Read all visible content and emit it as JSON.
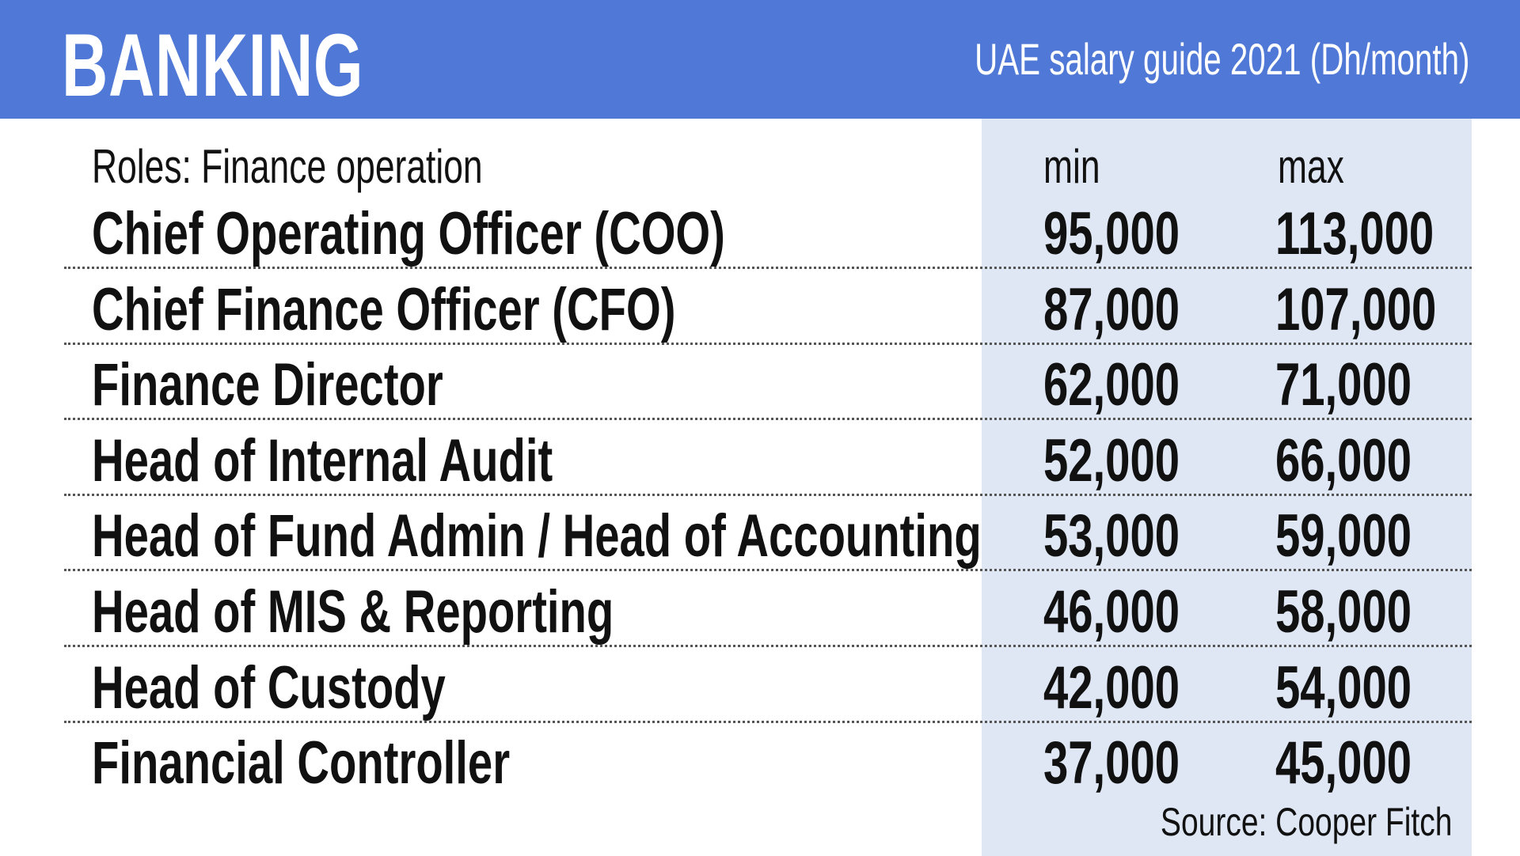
{
  "header": {
    "title": "BANKING",
    "subtitle": "UAE salary guide 2021 (Dh/month)",
    "color": "#5078d6"
  },
  "table": {
    "role_header": "Roles: Finance operation",
    "min_header": "min",
    "max_header": "max",
    "rows": [
      {
        "role": "Chief Operating Officer (COO)",
        "min": "95,000",
        "max": "113,000"
      },
      {
        "role": "Chief Finance Officer (CFO)",
        "min": "87,000",
        "max": "107,000"
      },
      {
        "role": "Finance Director",
        "min": "62,000",
        "max": "71,000"
      },
      {
        "role": "Head of Internal Audit",
        "min": "52,000",
        "max": "66,000"
      },
      {
        "role": "Head of Fund Admin / Head of Accounting",
        "min": "53,000",
        "max": "59,000"
      },
      {
        "role": "Head of MIS & Reporting",
        "min": "46,000",
        "max": "58,000"
      },
      {
        "role": "Head of Custody",
        "min": "42,000",
        "max": "54,000"
      },
      {
        "role": "Financial Controller",
        "min": "37,000",
        "max": "45,000"
      }
    ]
  },
  "source": "Source: Cooper Fitch"
}
